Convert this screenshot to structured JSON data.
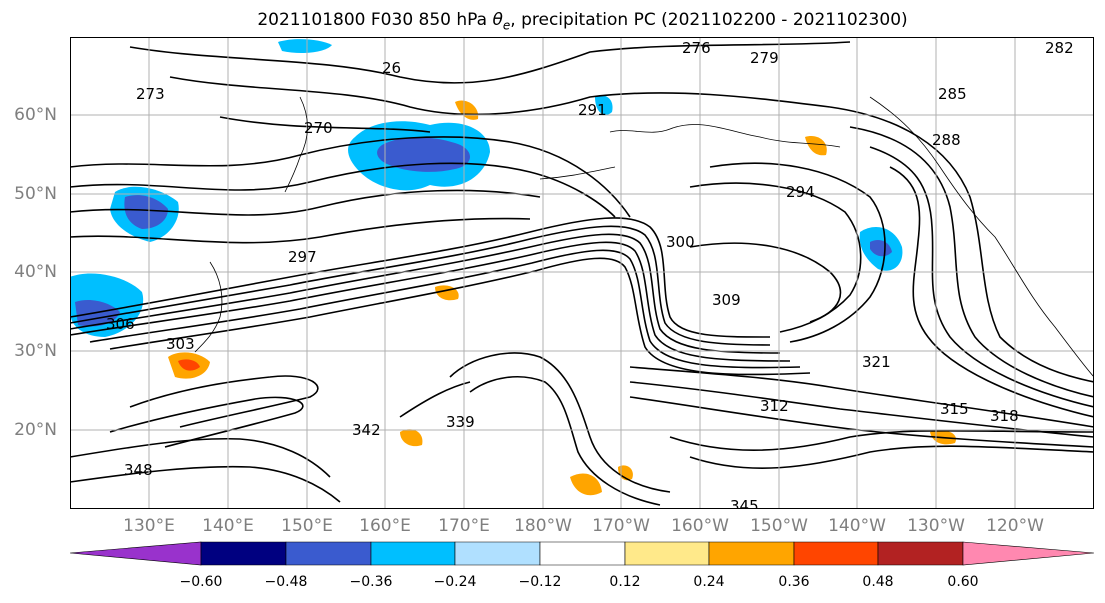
{
  "title": {
    "main": "2021101800 F030 850 hPa ",
    "theta": "θ",
    "sub": "e",
    "rest": ", precipitation PC (2021102200 - 2021102300)"
  },
  "map": {
    "lat_labels": [
      "60°N",
      "50°N",
      "40°N",
      "30°N",
      "20°N"
    ],
    "lon_labels": [
      "130°E",
      "140°E",
      "150°E",
      "160°E",
      "170°E",
      "180°W",
      "170°W",
      "160°W",
      "150°W",
      "140°W",
      "130°W",
      "120°W"
    ],
    "contour_labels": [
      "276",
      "279",
      "282",
      "26",
      "273",
      "270",
      "291",
      "288",
      "294",
      "300",
      "297",
      "309",
      "306",
      "321",
      "315",
      "318",
      "342",
      "345",
      "348",
      "339",
      "312",
      "303",
      "285"
    ]
  },
  "colorbar": {
    "colors": [
      "#9932cc",
      "#000080",
      "#3a5bcf",
      "#00bfff",
      "#b0e0ff",
      "#ffffff",
      "#ffe98a",
      "#ffa500",
      "#ff4500",
      "#b22222",
      "#ff88b0"
    ],
    "ticks": [
      "−0.60",
      "−0.48",
      "−0.36",
      "−0.24",
      "−0.12",
      "0.12",
      "0.24",
      "0.36",
      "0.48",
      "0.60"
    ]
  }
}
